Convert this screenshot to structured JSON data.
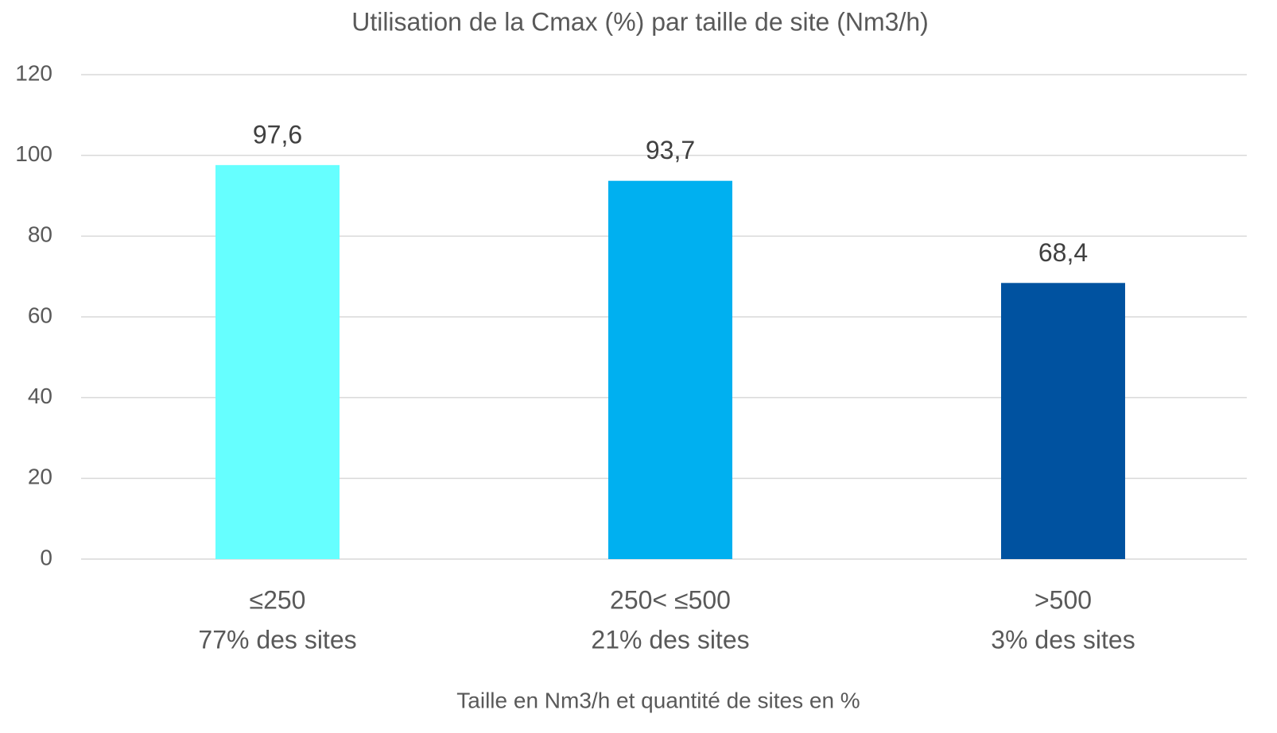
{
  "chart_data": {
    "type": "bar",
    "title": "Utilisation de la Cmax (%) par taille de site (Nm3/h)",
    "x_label": "Taille en Nm3/h et quantité de sites en %",
    "categories": [
      [
        "≤250",
        "77% des sites"
      ],
      [
        "250<  ≤500",
        "21% des sites"
      ],
      [
        ">500",
        "3% des sites"
      ]
    ],
    "values": [
      97.6,
      93.7,
      68.4
    ],
    "value_labels": [
      "97,6",
      "93,7",
      "68,4"
    ],
    "colors": [
      "#66ffff",
      "#00b0f0",
      "#0052a0"
    ],
    "ylim": [
      0,
      120
    ],
    "yticks": [
      0,
      20,
      40,
      60,
      80,
      100,
      120
    ],
    "grid": true
  }
}
